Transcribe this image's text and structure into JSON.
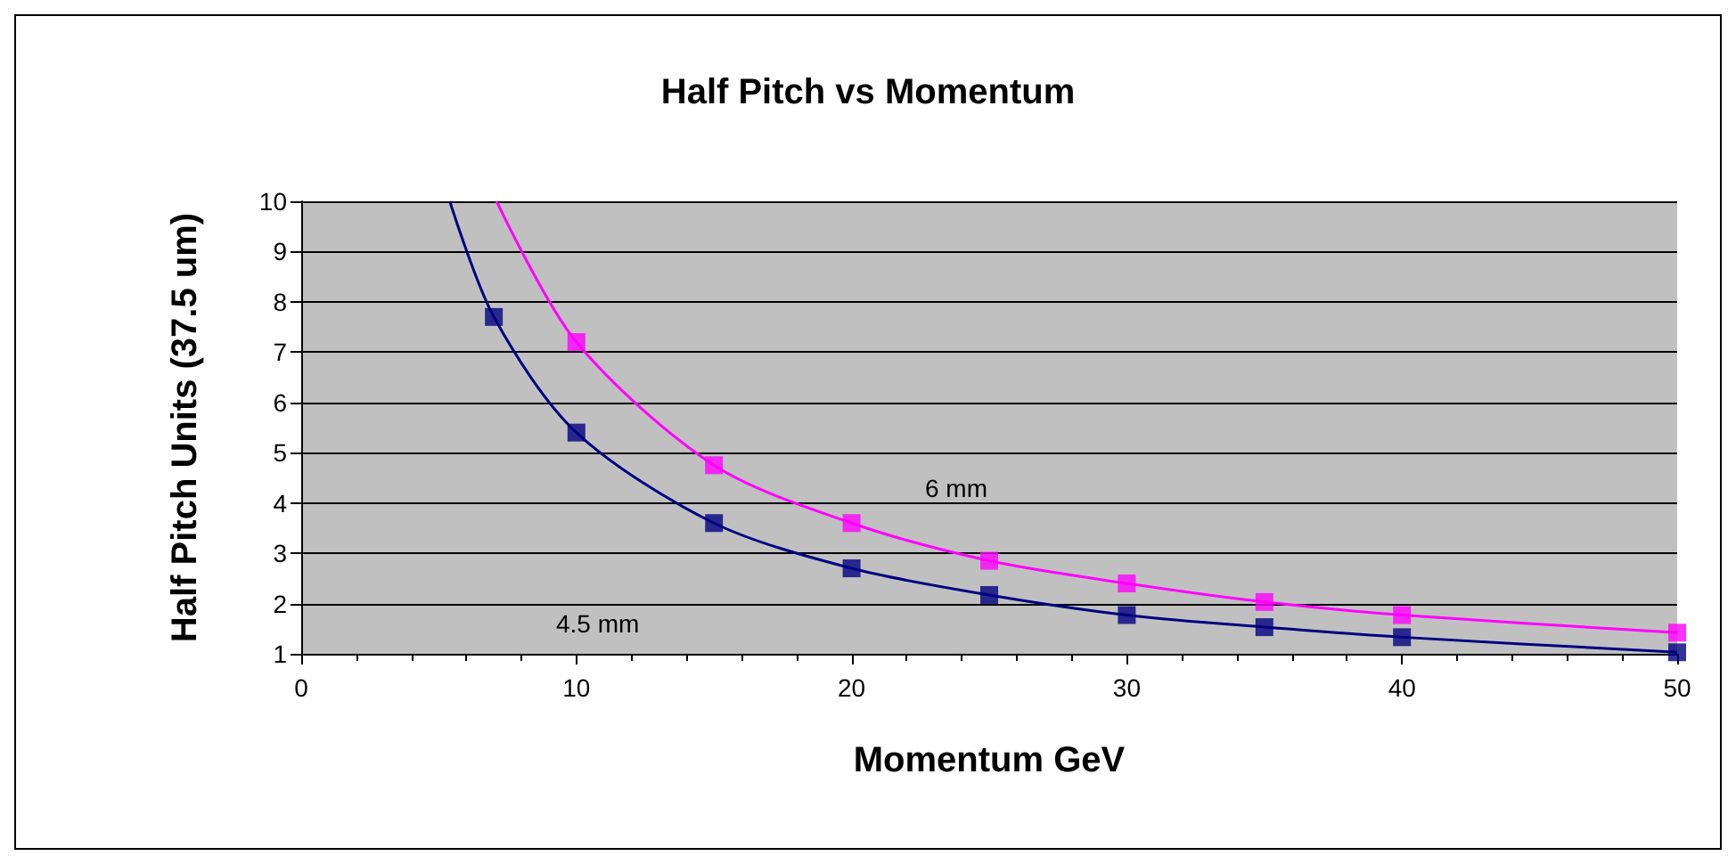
{
  "chart_data": {
    "type": "scatter",
    "title": "Half Pitch vs Momentum",
    "xlabel": "Momentum GeV",
    "ylabel": "Half Pitch Units (37.5 um)",
    "series": [
      {
        "type": "line",
        "color": "#000080",
        "marker": "none",
        "x": [
          5.4,
          7,
          10,
          15,
          20,
          25,
          30,
          35,
          40,
          50
        ],
        "values": [
          10,
          7.7,
          5.4,
          3.6,
          2.7,
          2.17,
          1.77,
          1.53,
          1.33,
          1.03
        ]
      },
      {
        "type": "line",
        "color": "#ff00ff",
        "marker": "none",
        "x": [
          7.1,
          10,
          15,
          20,
          25,
          30,
          35,
          40,
          50
        ],
        "values": [
          10,
          7.2,
          4.75,
          3.6,
          2.85,
          2.4,
          2.03,
          1.77,
          1.42
        ]
      },
      {
        "color": "#000080",
        "marker": "square",
        "x": [
          7,
          10,
          15,
          20,
          25,
          30,
          35,
          40,
          50
        ],
        "values": [
          7.7,
          5.4,
          3.6,
          2.7,
          2.17,
          1.77,
          1.53,
          1.33,
          1.03
        ]
      },
      {
        "color": "#ff00ff",
        "marker": "square",
        "x": [
          10,
          15,
          20,
          25,
          30,
          35,
          40,
          50
        ],
        "values": [
          7.2,
          4.75,
          3.6,
          2.85,
          2.4,
          2.03,
          1.77,
          1.42
        ]
      }
    ],
    "annotations": [
      "6 mm",
      "4.5 mm"
    ],
    "xlim": [
      0,
      50
    ],
    "xticks": [
      0,
      10,
      20,
      30,
      40,
      50
    ],
    "ylim": [
      1,
      10
    ],
    "yticks": [
      1,
      2,
      3,
      4,
      5,
      6,
      7,
      8,
      9,
      10
    ],
    "grid": "y"
  }
}
